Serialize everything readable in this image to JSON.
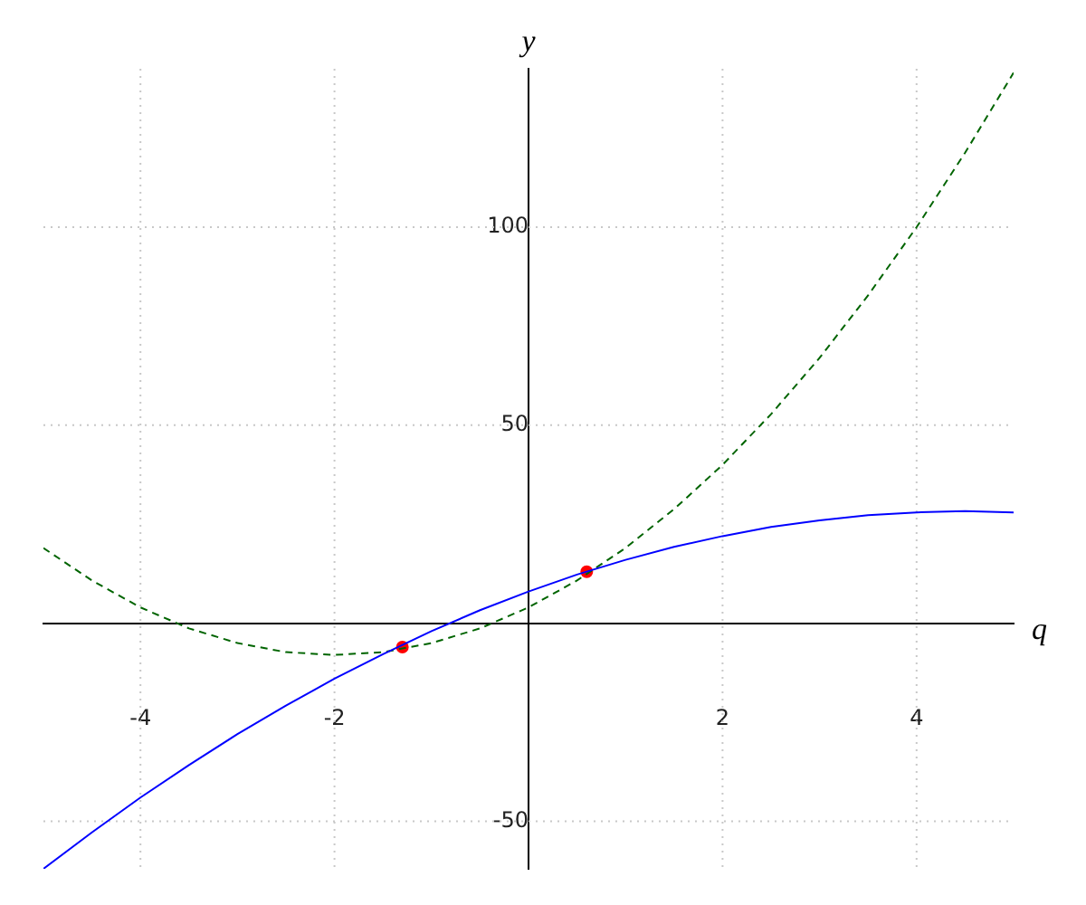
{
  "chart_data": {
    "type": "line",
    "xlabel": "q",
    "ylabel": "y",
    "xlim": [
      -5,
      5
    ],
    "ylim": [
      -62,
      140
    ],
    "xticks": [
      -4,
      -2,
      2,
      4
    ],
    "yticks": [
      -50,
      50,
      100
    ],
    "grid": true,
    "legend": false,
    "x": [
      -5,
      -4.5,
      -4,
      -3.5,
      -3,
      -2.5,
      -2,
      -1.5,
      -1,
      -0.5,
      0,
      0.5,
      1,
      1.5,
      2,
      2.5,
      3,
      3.5,
      4,
      4.5,
      5
    ],
    "series": [
      {
        "type": "line",
        "color": "#0000ff",
        "line_style": "solid",
        "marker": "none",
        "values": [
          -62,
          -52.8,
          -44,
          -35.8,
          -28,
          -20.8,
          -14,
          -7.8,
          -2,
          3.3,
          8,
          12.3,
          16,
          19.3,
          22,
          24.3,
          26,
          27.3,
          28,
          28.3,
          28
        ]
      },
      {
        "type": "line",
        "color": "#006400",
        "line_style": "dashed",
        "marker": "none",
        "values": [
          19,
          10.8,
          4,
          -1.3,
          -5,
          -7.3,
          -8,
          -7.3,
          -5,
          -1.3,
          4,
          10.8,
          19,
          28.8,
          40,
          52.8,
          67,
          82.8,
          100,
          118.8,
          139
        ]
      },
      {
        "type": "scatter",
        "color": "#ff0000",
        "marker": "circle",
        "x": [
          -1.3,
          0.6
        ],
        "values": [
          -6,
          13
        ]
      }
    ]
  }
}
